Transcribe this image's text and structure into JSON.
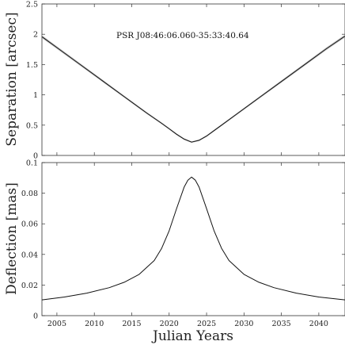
{
  "chart_data": [
    {
      "type": "line",
      "title": "",
      "annotation": "PSR J08:46:06.060-35:33:40.64",
      "xlabel": "",
      "ylabel": "Separation [arcsec]",
      "xlim": [
        2003,
        2043.5
      ],
      "ylim": [
        0,
        2.5
      ],
      "y_ticks": [
        "0",
        "0.5",
        "1",
        "1.5",
        "2",
        "2.5"
      ],
      "x_tick_labels_shown": false,
      "grid": false,
      "uncertainty_band": true,
      "series": [
        {
          "x": [
            2003,
            2005,
            2008,
            2011,
            2014,
            2017,
            2019,
            2020,
            2021,
            2022,
            2023,
            2024,
            2025,
            2026,
            2027,
            2029,
            2032,
            2035,
            2038,
            2041,
            2043.5
          ],
          "y": [
            1.96,
            1.78,
            1.51,
            1.24,
            0.97,
            0.7,
            0.53,
            0.44,
            0.35,
            0.27,
            0.22,
            0.25,
            0.32,
            0.41,
            0.5,
            0.68,
            0.95,
            1.22,
            1.49,
            1.76,
            1.97
          ]
        }
      ]
    },
    {
      "type": "line",
      "title": "",
      "xlabel": "Julian Years",
      "ylabel": "Deflection [mas]",
      "xlim": [
        2003,
        2043.5
      ],
      "ylim": [
        0,
        0.1
      ],
      "y_ticks": [
        "0",
        "0.02",
        "0.04",
        "0.06",
        "0.08",
        "0.1"
      ],
      "x_ticks": [
        "2005",
        "2010",
        "2015",
        "2020",
        "2025",
        "2030",
        "2035",
        "2040"
      ],
      "grid": false,
      "series": [
        {
          "x": [
            2003,
            2006,
            2009,
            2012,
            2014,
            2016,
            2018,
            2019,
            2020,
            2021,
            2022,
            2022.5,
            2023,
            2023.5,
            2024,
            2025,
            2026,
            2027,
            2028,
            2030,
            2032,
            2034,
            2037,
            2040,
            2043.5
          ],
          "y": [
            0.0103,
            0.0122,
            0.0147,
            0.0183,
            0.0218,
            0.027,
            0.036,
            0.044,
            0.0555,
            0.07,
            0.084,
            0.0885,
            0.0905,
            0.0885,
            0.084,
            0.07,
            0.0555,
            0.044,
            0.036,
            0.027,
            0.0218,
            0.0183,
            0.0147,
            0.0122,
            0.0103
          ]
        }
      ]
    }
  ]
}
